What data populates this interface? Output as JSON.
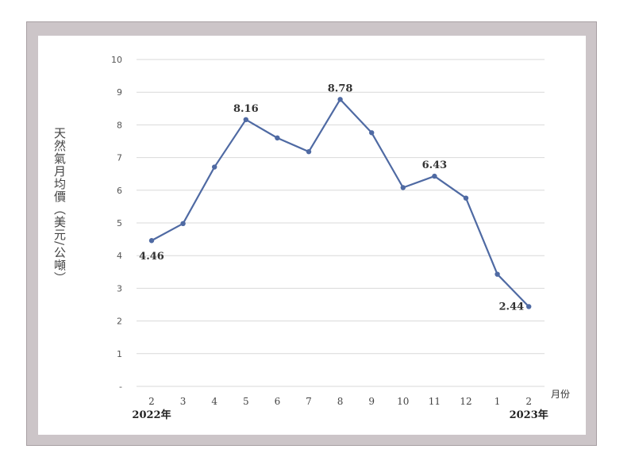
{
  "chart_data": {
    "type": "line",
    "ylabel": "天然氣月均價（美元/公噸）",
    "xlabel": "月份",
    "categories": [
      "2",
      "3",
      "4",
      "5",
      "6",
      "7",
      "8",
      "9",
      "10",
      "11",
      "12",
      "1",
      "2"
    ],
    "year_labels": [
      {
        "text": "2022年",
        "category_index": 0
      },
      {
        "text": "2023年",
        "category_index": 12
      }
    ],
    "series": [
      {
        "values": [
          4.46,
          4.98,
          6.71,
          8.16,
          7.6,
          7.18,
          8.78,
          7.76,
          6.08,
          6.43,
          5.76,
          3.43,
          2.44
        ],
        "color": "#4f6aa3"
      }
    ],
    "data_labels": [
      {
        "index": 0,
        "text": "4.46",
        "position": "below"
      },
      {
        "index": 3,
        "text": "8.16",
        "position": "above"
      },
      {
        "index": 6,
        "text": "8.78",
        "position": "above"
      },
      {
        "index": 9,
        "text": "6.43",
        "position": "above"
      },
      {
        "index": 12,
        "text": "2.44",
        "position": "left"
      }
    ],
    "yticks": [
      "-",
      "1",
      "2",
      "3",
      "4",
      "5",
      "6",
      "7",
      "8",
      "9",
      "10"
    ],
    "ylim": [
      0,
      10
    ],
    "grid": true,
    "line_color": "#4f6aa3",
    "grid_color": "#d9d9d9"
  }
}
